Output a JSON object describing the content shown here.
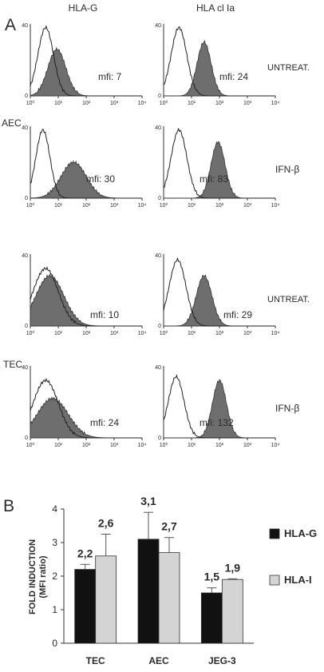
{
  "panel_a": {
    "label": "A",
    "columns": [
      "HLA-G",
      "HLA cl Ia"
    ],
    "row_conditions": [
      "UNTREAT.",
      "IFN-β",
      "UNTREAT.",
      "IFN-β"
    ],
    "cell_groups": [
      "AEC",
      "TEC"
    ],
    "y_axis": {
      "min": 0,
      "max": 40,
      "tick": "40",
      "zero": "0"
    },
    "x_axis": {
      "ticks": [
        "10⁰",
        "10¹",
        "10²",
        "10³",
        "10⁴"
      ]
    },
    "mfi": [
      [
        "mfi: 7",
        "mfi: 24"
      ],
      [
        "mfi: 30",
        "mfi: 83"
      ],
      [
        "mfi: 10",
        "mfi: 29"
      ],
      [
        "mfi: 24",
        "mfi: 132"
      ]
    ],
    "colors": {
      "fill": "#6e6e6e",
      "outline": "#222222"
    }
  },
  "chart_data": {
    "type": "bar",
    "panel_label": "B",
    "categories": [
      "TEC",
      "AEC",
      "JEG-3"
    ],
    "series": [
      {
        "name": "HLA-G",
        "values": [
          2.2,
          3.1,
          1.5
        ],
        "labels": [
          "2,2",
          "3,1",
          "1,5"
        ],
        "errors": [
          0.15,
          0.8,
          0.15
        ],
        "color": "#111111"
      },
      {
        "name": "HLA-I",
        "values": [
          2.6,
          2.7,
          1.9
        ],
        "labels": [
          "2,6",
          "2,7",
          "1,9"
        ],
        "errors": [
          0.65,
          0.45,
          0.02
        ],
        "color": "#d4d4d4"
      }
    ],
    "ylabel_line1": "FOLD INDUCTION",
    "ylabel_line2": "(MFI ratio)",
    "ylim": [
      0,
      4
    ],
    "yticks": [
      0,
      1,
      2,
      3,
      4
    ],
    "legend_position": "right"
  }
}
